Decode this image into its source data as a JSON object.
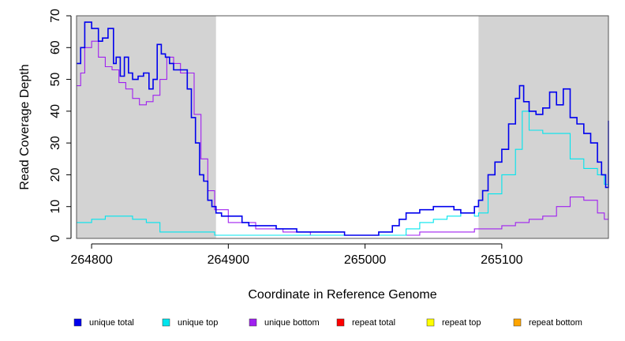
{
  "chart_data": {
    "type": "line",
    "title": "",
    "xlabel": "Coordinate in Reference Genome",
    "ylabel": "Read Coverage Depth",
    "xlim": [
      264789,
      265178
    ],
    "ylim": [
      0,
      70
    ],
    "xticks": [
      264800,
      264900,
      265000,
      265100
    ],
    "yticks": [
      0,
      10,
      20,
      30,
      40,
      50,
      60,
      70
    ],
    "grid": false,
    "legend_position": "bottom",
    "shaded_regions": [
      {
        "x_start": 264789,
        "x_end": 264891,
        "color": "#d3d3d3"
      },
      {
        "x_start": 265083,
        "x_end": 265178,
        "color": "#d3d3d3"
      }
    ],
    "series": [
      {
        "name": "unique total",
        "color": "#0000ee",
        "x": [
          264789,
          264792,
          264795,
          264800,
          264805,
          264808,
          264812,
          264816,
          264818,
          264821,
          264824,
          264827,
          264830,
          264834,
          264838,
          264842,
          264845,
          264848,
          264851,
          264854,
          264857,
          264860,
          264864,
          264867,
          264870,
          264873,
          264876,
          264879,
          264882,
          264885,
          264888,
          264891,
          264895,
          264900,
          264905,
          264910,
          264915,
          264920,
          264925,
          264930,
          264935,
          264940,
          264945,
          264950,
          264955,
          264960,
          264965,
          264970,
          264975,
          264980,
          264985,
          264990,
          264995,
          265000,
          265005,
          265010,
          265015,
          265020,
          265025,
          265030,
          265035,
          265040,
          265045,
          265050,
          265055,
          265060,
          265065,
          265070,
          265075,
          265080,
          265083,
          265086,
          265090,
          265095,
          265100,
          265105,
          265110,
          265113,
          265116,
          265120,
          265125,
          265130,
          265135,
          265140,
          265145,
          265150,
          265155,
          265160,
          265165,
          265170,
          265173,
          265176,
          265178
        ],
        "values": [
          55,
          60,
          68,
          66,
          62,
          63,
          66,
          55,
          57,
          51,
          57,
          52,
          50,
          51,
          52,
          47,
          50,
          61,
          58,
          57,
          55,
          53,
          53,
          53,
          47,
          38,
          30,
          20,
          18,
          12,
          10,
          8,
          7,
          7,
          7,
          5,
          4,
          4,
          4,
          4,
          3,
          3,
          3,
          2,
          2,
          2,
          2,
          2,
          2,
          2,
          1,
          1,
          1,
          1,
          1,
          2,
          2,
          4,
          6,
          8,
          8,
          9,
          9,
          10,
          10,
          10,
          9,
          8,
          8,
          10,
          12,
          15,
          20,
          24,
          28,
          36,
          44,
          48,
          43,
          40,
          39,
          41,
          46,
          42,
          47,
          38,
          36,
          33,
          30,
          24,
          20,
          16,
          37
        ]
      },
      {
        "name": "unique top",
        "color": "#00e5ee",
        "x": [
          264789,
          264795,
          264800,
          264810,
          264820,
          264830,
          264840,
          264850,
          264860,
          264870,
          264880,
          264890,
          264900,
          264920,
          264940,
          264960,
          264980,
          265000,
          265020,
          265030,
          265040,
          265050,
          265060,
          265070,
          265080,
          265083,
          265090,
          265100,
          265110,
          265115,
          265120,
          265130,
          265140,
          265150,
          265160,
          265170,
          265175,
          265178
        ],
        "values": [
          5,
          5,
          6,
          7,
          7,
          6,
          5,
          2,
          2,
          2,
          2,
          1,
          1,
          1,
          1,
          1,
          1,
          1,
          1,
          3,
          5,
          6,
          7,
          8,
          7,
          8,
          14,
          20,
          28,
          40,
          34,
          33,
          33,
          25,
          22,
          20,
          17,
          22
        ]
      },
      {
        "name": "unique bottom",
        "color": "#a020f0",
        "x": [
          264789,
          264792,
          264795,
          264800,
          264805,
          264810,
          264815,
          264820,
          264825,
          264830,
          264835,
          264840,
          264845,
          264850,
          264855,
          264860,
          264865,
          264870,
          264875,
          264880,
          264885,
          264890,
          264900,
          264920,
          264940,
          264960,
          264980,
          265000,
          265020,
          265040,
          265060,
          265080,
          265100,
          265110,
          265120,
          265130,
          265140,
          265150,
          265160,
          265170,
          265175,
          265178
        ],
        "values": [
          48,
          52,
          60,
          62,
          57,
          54,
          53,
          49,
          47,
          44,
          42,
          43,
          45,
          50,
          57,
          55,
          52,
          52,
          39,
          25,
          15,
          9,
          5,
          3,
          2,
          1,
          1,
          1,
          1,
          2,
          2,
          3,
          4,
          5,
          6,
          7,
          10,
          13,
          12,
          8,
          6,
          8
        ]
      },
      {
        "name": "repeat total",
        "color": "#ff0000",
        "x": [
          264789,
          265178
        ],
        "values": [
          0,
          0
        ]
      },
      {
        "name": "repeat top",
        "color": "#ffff00",
        "x": [
          264789,
          265178
        ],
        "values": [
          0,
          0
        ]
      },
      {
        "name": "repeat bottom",
        "color": "#ffa500",
        "x": [
          264789,
          265178
        ],
        "values": [
          0,
          0
        ]
      }
    ]
  }
}
